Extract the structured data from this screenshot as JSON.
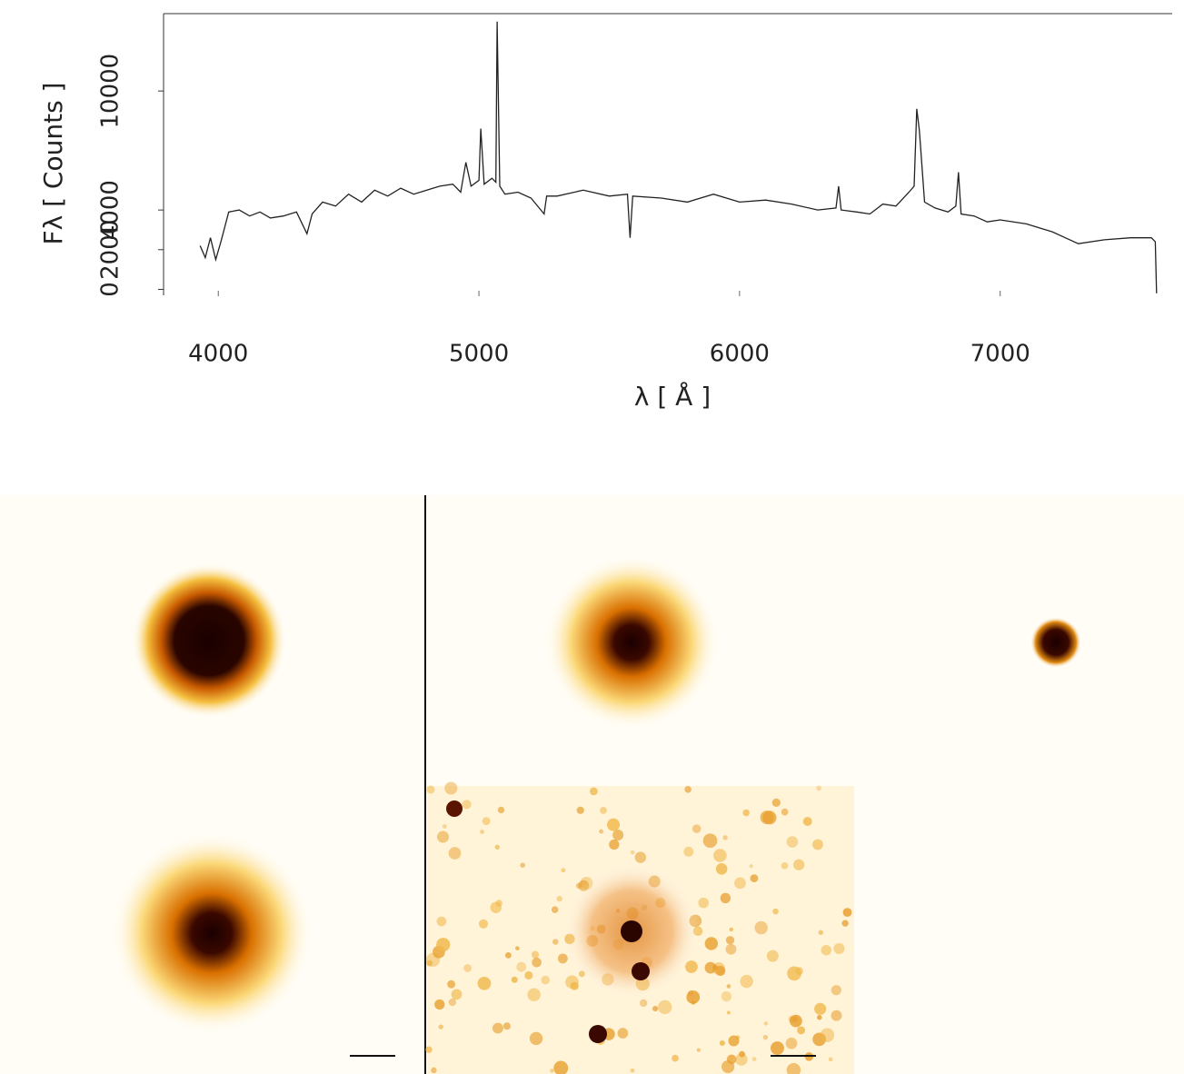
{
  "chart_data": {
    "type": "line",
    "x_label": "λ [ Å ]",
    "y_label": "Fλ [ Counts ]",
    "xlim": [
      3790,
      7660
    ],
    "ylim": [
      -300,
      13900
    ],
    "xticks": [
      4000,
      5000,
      6000,
      7000
    ],
    "yticks": [
      0,
      2000,
      4000,
      10000
    ],
    "series": [
      {
        "color": "#222222",
        "x": [
          3930,
          3950,
          3970,
          3990,
          4010,
          4040,
          4080,
          4120,
          4160,
          4200,
          4250,
          4300,
          4340,
          4360,
          4400,
          4450,
          4500,
          4550,
          4600,
          4650,
          4700,
          4750,
          4800,
          4850,
          4900,
          4930,
          4950,
          4970,
          5000,
          5007,
          5020,
          5050,
          5065,
          5070,
          5080,
          5100,
          5150,
          5200,
          5250,
          5260,
          5300,
          5400,
          5500,
          5570,
          5580,
          5590,
          5700,
          5800,
          5900,
          6000,
          6100,
          6200,
          6300,
          6370,
          6380,
          6390,
          6450,
          6500,
          6550,
          6600,
          6650,
          6670,
          6680,
          6690,
          6710,
          6750,
          6800,
          6830,
          6840,
          6850,
          6900,
          6950,
          7000,
          7100,
          7200,
          7250,
          7300,
          7400,
          7500,
          7580,
          7595,
          7600
        ],
        "values": [
          2200,
          1600,
          2600,
          1500,
          2400,
          3900,
          4000,
          3700,
          3900,
          3600,
          3700,
          3900,
          2800,
          3800,
          4400,
          4200,
          4800,
          4400,
          5000,
          4700,
          5100,
          4800,
          5000,
          5200,
          5300,
          4900,
          6400,
          5200,
          5500,
          8100,
          5300,
          5600,
          5400,
          13500,
          5200,
          4800,
          4900,
          4600,
          3800,
          4700,
          4700,
          5000,
          4700,
          4800,
          2600,
          4700,
          4600,
          4400,
          4800,
          4400,
          4500,
          4300,
          4000,
          4100,
          5200,
          4000,
          3900,
          3800,
          4300,
          4200,
          4900,
          5200,
          9100,
          8000,
          4400,
          4100,
          3900,
          4200,
          5900,
          3800,
          3700,
          3400,
          3500,
          3300,
          2900,
          2600,
          2300,
          2500,
          2600,
          2600,
          2400,
          -200
        ]
      }
    ]
  }
}
